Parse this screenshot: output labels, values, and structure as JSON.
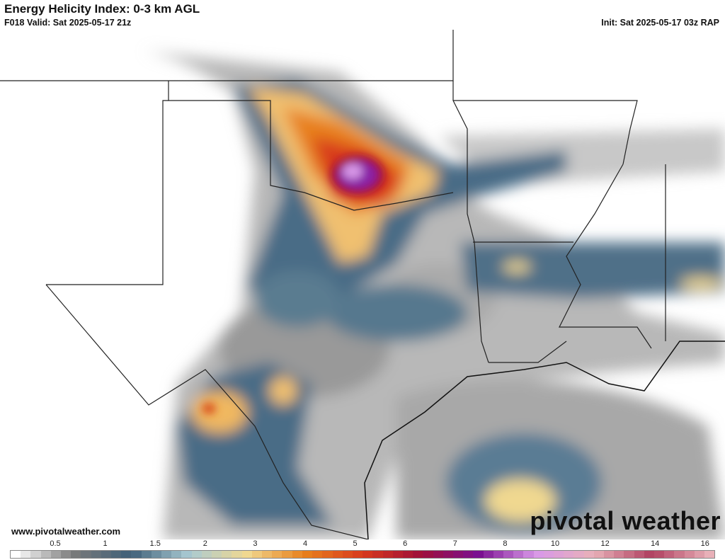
{
  "header": {
    "title": "Energy Helicity Index: 0-3 km AGL",
    "valid": "F018 Valid: Sat 2025-05-17 21z",
    "init": "Init: Sat 2025-05-17 03z RAP"
  },
  "footer": {
    "website": "www.pivotalweather.com",
    "logo": "pivotal weather"
  },
  "colorbar": {
    "ticks": [
      "0.5",
      "1",
      "1.5",
      "2",
      "3",
      "4",
      "5",
      "6",
      "7",
      "8",
      "10",
      "12",
      "14",
      "16"
    ],
    "colors": {
      "low": "#ffffff",
      "gray": "#7a7a7a",
      "steel": "#3f6079",
      "light_blue": "#a9cad3",
      "yellow": "#f0d890",
      "orange": "#e8801c",
      "red": "#d83a1c",
      "crimson": "#a0103a",
      "purple": "#7a1090",
      "violet": "#d898e8",
      "pink": "#e8b0b8",
      "rose": "#b04060"
    }
  }
}
